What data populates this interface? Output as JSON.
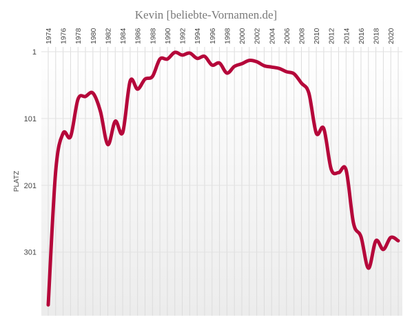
{
  "chart_data": {
    "type": "line",
    "title": "Kevin  [beliebte-Vornamen.de]",
    "ylabel": "PLATZ",
    "xlabel": "",
    "y_reversed": true,
    "ylim": [
      1,
      390
    ],
    "y_ticks": [
      1,
      101,
      201,
      301
    ],
    "x_tick_labels": [
      "1974",
      "1976",
      "1978",
      "1980",
      "1982",
      "1984",
      "1986",
      "1988",
      "1990",
      "1992",
      "1994",
      "1996",
      "1998",
      "2000",
      "2002",
      "2004",
      "2006",
      "2008",
      "2010",
      "2012",
      "2014",
      "2016",
      "2018",
      "2020"
    ],
    "grid": "vertical lines per year",
    "series": [
      {
        "color": "#b5073a",
        "x": [
          1974,
          1975,
          1976,
          1977,
          1978,
          1979,
          1980,
          1981,
          1982,
          1983,
          1984,
          1985,
          1986,
          1987,
          1988,
          1989,
          1990,
          1991,
          1992,
          1993,
          1994,
          1995,
          1996,
          1997,
          1998,
          1999,
          2000,
          2001,
          2002,
          2003,
          2004,
          2005,
          2006,
          2007,
          2008,
          2009,
          2010,
          2011,
          2012,
          2013,
          2014,
          2015,
          2016,
          2017,
          2018,
          2019,
          2020,
          2021
        ],
        "values": [
          380,
          180,
          123,
          128,
          72,
          68,
          63,
          90,
          140,
          105,
          122,
          45,
          57,
          42,
          38,
          12,
          12,
          2,
          6,
          3,
          11,
          8,
          21,
          18,
          33,
          23,
          19,
          14,
          16,
          22,
          24,
          26,
          31,
          34,
          48,
          63,
          123,
          116,
          177,
          182,
          178,
          258,
          278,
          325,
          284,
          297,
          279,
          284
        ]
      }
    ]
  }
}
